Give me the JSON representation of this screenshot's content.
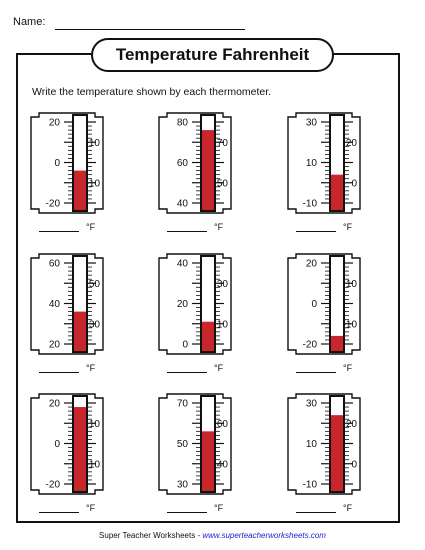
{
  "header": {
    "name_label": "Name:"
  },
  "title": "Temperature Fahrenheit",
  "instructions": "Write the temperature shown by each thermometer.",
  "answer_unit": "°F",
  "colors": {
    "mercury": "#c8252c",
    "ink": "#111111",
    "link": "#2222cc"
  },
  "footer": {
    "brand": "Super Teacher Worksheets",
    "separator": " - ",
    "url": "www.superteacherworksheets.com"
  },
  "thermometers": [
    {
      "left": [
        20,
        0,
        -20
      ],
      "right": [
        10,
        -10
      ],
      "min": -20,
      "max": 20,
      "reading": -4
    },
    {
      "left": [
        80,
        60,
        40
      ],
      "right": [
        70,
        50
      ],
      "min": 40,
      "max": 80,
      "reading": 76
    },
    {
      "left": [
        30,
        10,
        -10
      ],
      "right": [
        20,
        0
      ],
      "min": -10,
      "max": 30,
      "reading": 4
    },
    {
      "left": [
        60,
        40,
        20
      ],
      "right": [
        50,
        30
      ],
      "min": 20,
      "max": 60,
      "reading": 36
    },
    {
      "left": [
        40,
        20,
        0
      ],
      "right": [
        30,
        10
      ],
      "min": 0,
      "max": 40,
      "reading": 11
    },
    {
      "left": [
        20,
        0,
        -20
      ],
      "right": [
        10,
        -10
      ],
      "min": -20,
      "max": 20,
      "reading": -16
    },
    {
      "left": [
        20,
        0,
        -20
      ],
      "right": [
        10,
        -10
      ],
      "min": -20,
      "max": 20,
      "reading": 18
    },
    {
      "left": [
        70,
        50,
        30
      ],
      "right": [
        60,
        40
      ],
      "min": 30,
      "max": 70,
      "reading": 56
    },
    {
      "left": [
        30,
        10,
        -10
      ],
      "right": [
        20,
        0
      ],
      "min": -10,
      "max": 30,
      "reading": 24
    }
  ]
}
